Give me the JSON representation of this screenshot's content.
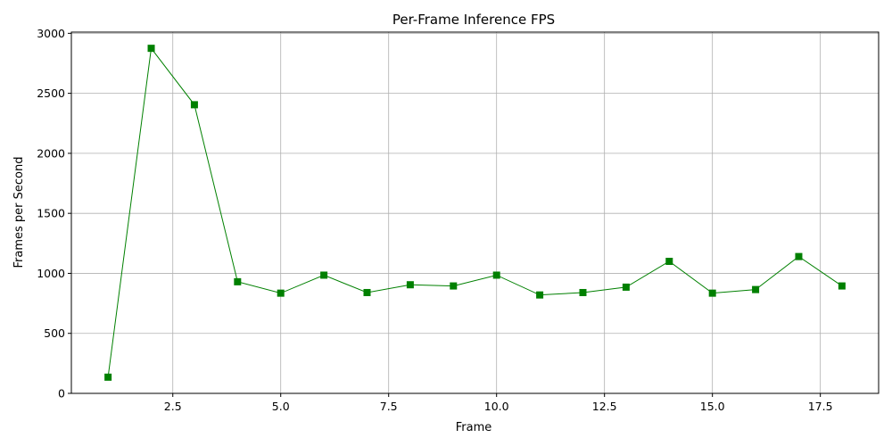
{
  "chart_data": {
    "type": "line",
    "title": "Per-Frame Inference FPS",
    "xlabel": "Frame",
    "ylabel": "Frames per Second",
    "xlim": [
      0.15,
      18.85
    ],
    "ylim": [
      0,
      3010
    ],
    "x_ticks": [
      2.5,
      5.0,
      7.5,
      10.0,
      12.5,
      15.0,
      17.5
    ],
    "x_tick_labels": [
      "2.5",
      "5.0",
      "7.5",
      "10.0",
      "12.5",
      "15.0",
      "17.5"
    ],
    "y_ticks": [
      0,
      500,
      1000,
      1500,
      2000,
      2500,
      3000
    ],
    "y_tick_labels": [
      "0",
      "500",
      "1000",
      "1500",
      "2000",
      "2500",
      "3000"
    ],
    "grid": true,
    "series": [
      {
        "color": "#008000",
        "marker": "square",
        "x": [
          1,
          2,
          3,
          4,
          5,
          6,
          7,
          8,
          9,
          10,
          11,
          12,
          13,
          14,
          15,
          16,
          17,
          18
        ],
        "y": [
          135,
          2875,
          2405,
          930,
          835,
          985,
          840,
          905,
          895,
          985,
          820,
          840,
          885,
          1100,
          835,
          865,
          1140,
          895
        ]
      }
    ]
  }
}
